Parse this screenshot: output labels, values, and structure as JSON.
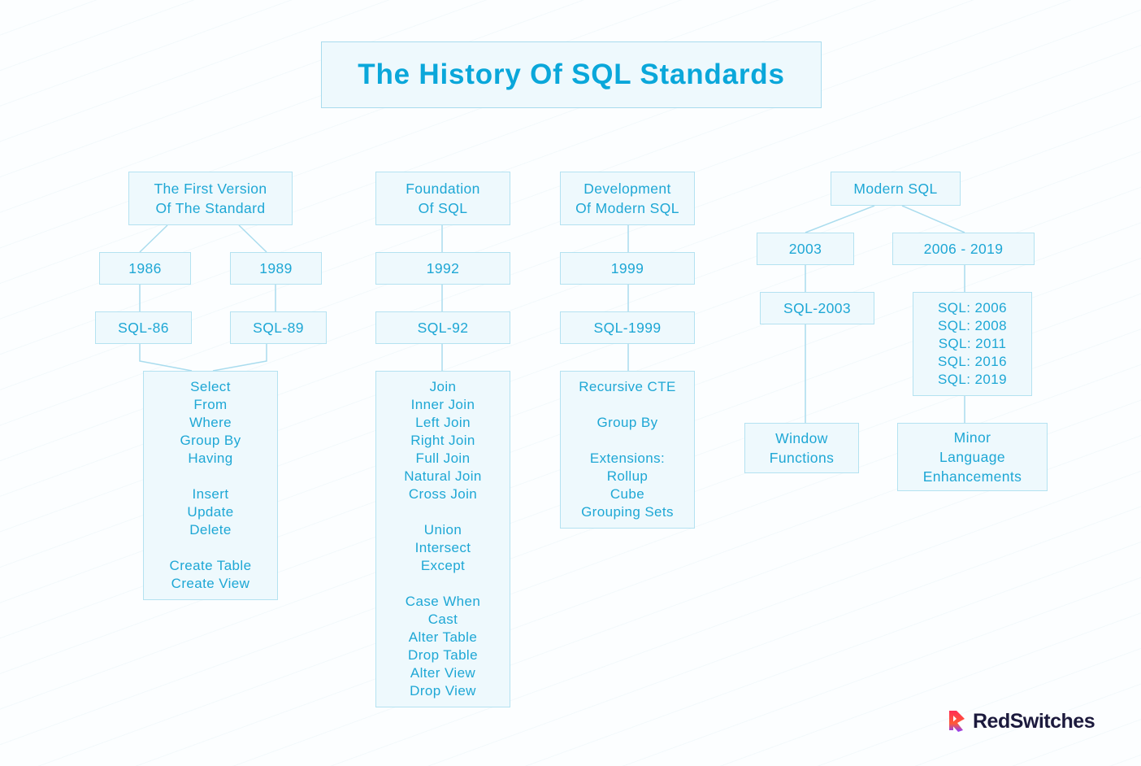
{
  "title": "The History Of SQL Standards",
  "colors": {
    "accent": "#1ea7d5",
    "box_bg": "#eef9fd",
    "box_border": "#b4e2f1",
    "title": "#0aa7da"
  },
  "boxes": {
    "first_version": [
      "The First Version",
      "Of The Standard"
    ],
    "y1986": [
      "1986"
    ],
    "y1989": [
      "1989"
    ],
    "sql86": [
      "SQL-86"
    ],
    "sql89": [
      "SQL-89"
    ],
    "features_86": [
      "Select",
      "From",
      "Where",
      "Group By",
      "Having",
      "",
      "Insert",
      "Update",
      "Delete",
      "",
      "Create Table",
      "Create View"
    ],
    "foundation": [
      "Foundation",
      "Of SQL"
    ],
    "y1992": [
      "1992"
    ],
    "sql92": [
      "SQL-92"
    ],
    "features_92": [
      "Join",
      "Inner Join",
      "Left Join",
      "Right Join",
      "Full Join",
      "Natural Join",
      "Cross Join",
      "",
      "Union",
      "Intersect",
      "Except",
      "",
      "Case When",
      "Cast",
      "Alter Table",
      "Drop Table",
      "Alter View",
      "Drop View"
    ],
    "development": [
      "Development",
      "Of Modern SQL"
    ],
    "y1999": [
      "1999"
    ],
    "sql1999": [
      "SQL-1999"
    ],
    "features_99": [
      "Recursive CTE",
      "",
      "Group By",
      "",
      "Extensions:",
      "Rollup",
      "Cube",
      "Grouping Sets"
    ],
    "modern": [
      "Modern SQL"
    ],
    "y2003": [
      "2003"
    ],
    "y2006_2019": [
      "2006 - 2019"
    ],
    "sql2003": [
      "SQL-2003"
    ],
    "sql_list": [
      "SQL: 2006",
      "SQL: 2008",
      "SQL: 2011",
      "SQL: 2016",
      "SQL: 2019"
    ],
    "window": [
      "Window",
      "Functions"
    ],
    "minor": [
      "Minor",
      "Language",
      "Enhancements"
    ]
  },
  "logo": {
    "text": "RedSwitches"
  }
}
